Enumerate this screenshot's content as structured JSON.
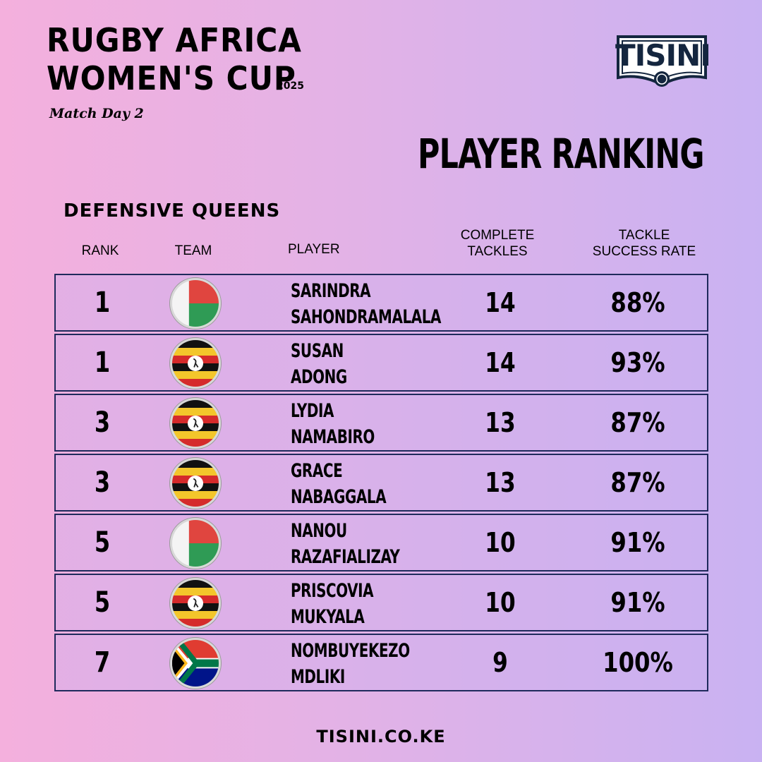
{
  "header": {
    "title_line1": "RUGBY AFRICA",
    "title_line2": "WOMEN'S CUP",
    "year": "2025",
    "match_day": "Match Day 2",
    "heading": "PLAYER RANKING",
    "subheading": "DEFENSIVE QUEENS"
  },
  "logo": {
    "text": "TISINI",
    "colors": {
      "primary": "#14263f"
    }
  },
  "columns": {
    "rank": "RANK",
    "team": "TEAM",
    "player": "PLAYER",
    "tackles_line1": "COMPLETE",
    "tackles_line2": "TACKLES",
    "rate_line1": "TACKLE",
    "rate_line2": "SUCCESS RATE"
  },
  "rows": [
    {
      "rank": "1",
      "team": "madagascar-flag",
      "first": "SARINDRA",
      "last": "SAHONDRAMALALA",
      "tackles": "14",
      "rate": "88%"
    },
    {
      "rank": "1",
      "team": "uganda-flag",
      "first": "SUSAN",
      "last": "ADONG",
      "tackles": "14",
      "rate": "93%"
    },
    {
      "rank": "3",
      "team": "uganda-flag",
      "first": "LYDIA",
      "last": "NAMABIRO",
      "tackles": "13",
      "rate": "87%"
    },
    {
      "rank": "3",
      "team": "uganda-flag",
      "first": "GRACE",
      "last": "NABAGGALA",
      "tackles": "13",
      "rate": "87%"
    },
    {
      "rank": "5",
      "team": "madagascar-flag",
      "first": "NANOU",
      "last": "RAZAFIALIZAY",
      "tackles": "10",
      "rate": "91%"
    },
    {
      "rank": "5",
      "team": "uganda-flag",
      "first": "PRISCOVIA",
      "last": "MUKYALA",
      "tackles": "10",
      "rate": "91%"
    },
    {
      "rank": "7",
      "team": "south-africa-flag",
      "first": "NOMBUYEKEZO",
      "last": "MDLIKI",
      "tackles": "9",
      "rate": "100%"
    }
  ],
  "footer": {
    "website": "TISINI.CO.KE"
  }
}
